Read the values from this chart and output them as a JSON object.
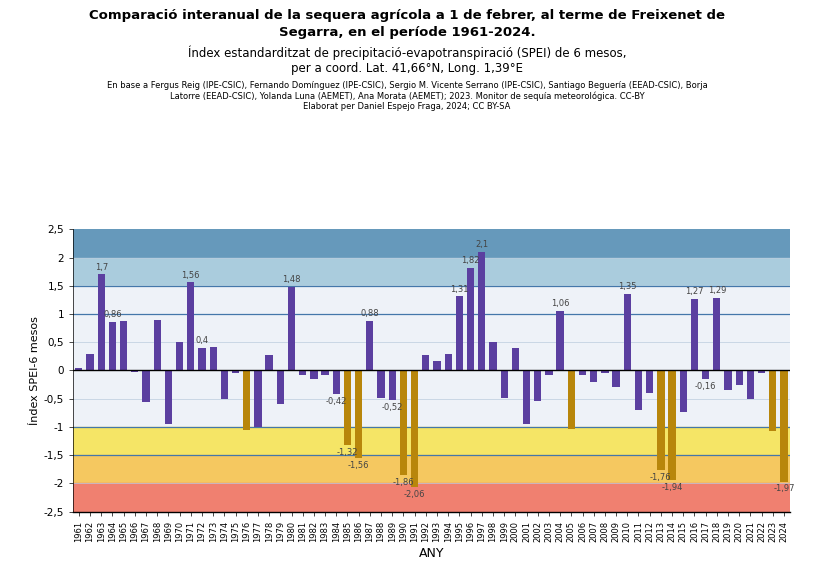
{
  "title1": "Comparació interanual de la sequera agrícola a 1 de febrer, al terme de Freixenet de",
  "title2": "Segarra, en el període 1961-2024.",
  "subtitle1": "Índex estandarditzat de precipitació-evapotranspiració (SPEI) de 6 mesos,",
  "subtitle2": "per a coord. Lat. 41,66°N, Long. 1,39°E",
  "credits1": "En base a Fergus Reig (IPE-CSIC), Fernando Domínguez (IPE-CSIC), Sergio M. Vicente Serrano (IPE-CSIC), Santiago Beguería (EEAD-CSIC), Borja",
  "credits2": "Latorre (EEAD-CSIC), Yolanda Luna (AEMET), Ana Morata (AEMET); 2023. Monitor de sequía meteorológica. CC-BY",
  "credits3": "Elaborat per Daniel Espejo Fraga, 2024; CC BY-SA",
  "xlabel": "ANY",
  "ylabel": "Índex SPEI-6 mesos",
  "years": [
    1961,
    1962,
    1963,
    1964,
    1965,
    1966,
    1967,
    1968,
    1969,
    1970,
    1971,
    1972,
    1973,
    1974,
    1975,
    1976,
    1977,
    1978,
    1979,
    1980,
    1981,
    1982,
    1983,
    1984,
    1985,
    1986,
    1987,
    1988,
    1989,
    1990,
    1991,
    1992,
    1993,
    1994,
    1995,
    1996,
    1997,
    1998,
    1999,
    2000,
    2001,
    2002,
    2003,
    2004,
    2005,
    2006,
    2007,
    2008,
    2009,
    2010,
    2011,
    2012,
    2013,
    2014,
    2015,
    2016,
    2017,
    2018,
    2019,
    2020,
    2021,
    2022,
    2023,
    2024
  ],
  "values": [
    0.05,
    0.3,
    1.7,
    0.86,
    0.87,
    -0.02,
    -0.56,
    0.89,
    -0.95,
    0.5,
    1.56,
    0.4,
    0.42,
    -0.5,
    -0.04,
    -1.05,
    -1.0,
    0.28,
    -0.6,
    1.48,
    -0.08,
    -0.15,
    -0.08,
    -0.42,
    -1.32,
    -1.56,
    0.88,
    -0.48,
    -0.52,
    -1.86,
    -2.06,
    0.27,
    0.16,
    0.3,
    1.31,
    1.82,
    2.1,
    0.5,
    -0.48,
    0.4,
    -0.95,
    -0.55,
    -0.08,
    1.06,
    -1.04,
    -0.08,
    -0.2,
    -0.05,
    -0.3,
    1.35,
    -0.7,
    -0.4,
    -1.76,
    -1.94,
    -0.74,
    1.27,
    -0.16,
    1.29,
    -0.35,
    -0.25,
    -0.5,
    -0.05,
    -1.07,
    -1.97
  ],
  "labeled": {
    "1963": "1,7",
    "1964": "0,86",
    "1971": "1,56",
    "1972": "0,4",
    "1980": "1,48",
    "1984": "-0,42",
    "1985": "-1,32",
    "1986": "-1,56",
    "1987": "0,88",
    "1989": "-0,52",
    "1990": "-1,86",
    "1991": "-2,06",
    "1995": "1,31",
    "1996": "1,82",
    "1997": "2,1",
    "2004": "1,06",
    "2010": "1,35",
    "2013": "-1,76",
    "2014": "-1,94",
    "2016": "1,27",
    "2017": "-0,16",
    "2018": "1,29",
    "2024": "-1,97"
  },
  "ylim": [
    -2.5,
    2.5
  ],
  "bar_color_purple": "#5B3FA0",
  "bar_color_orange": "#B8860B",
  "zone_extreme_wet_color": "#6699BB",
  "zone_very_wet_color": "#AACCDD",
  "zone_neutral_color": "#EEF2F8",
  "zone_moderate_dry_color": "#F5E566",
  "zone_severe_dry_color": "#F5C860",
  "zone_extreme_dry_color": "#F08070",
  "line_color": "#4477AA",
  "gridline_color": "#BBCCDD"
}
